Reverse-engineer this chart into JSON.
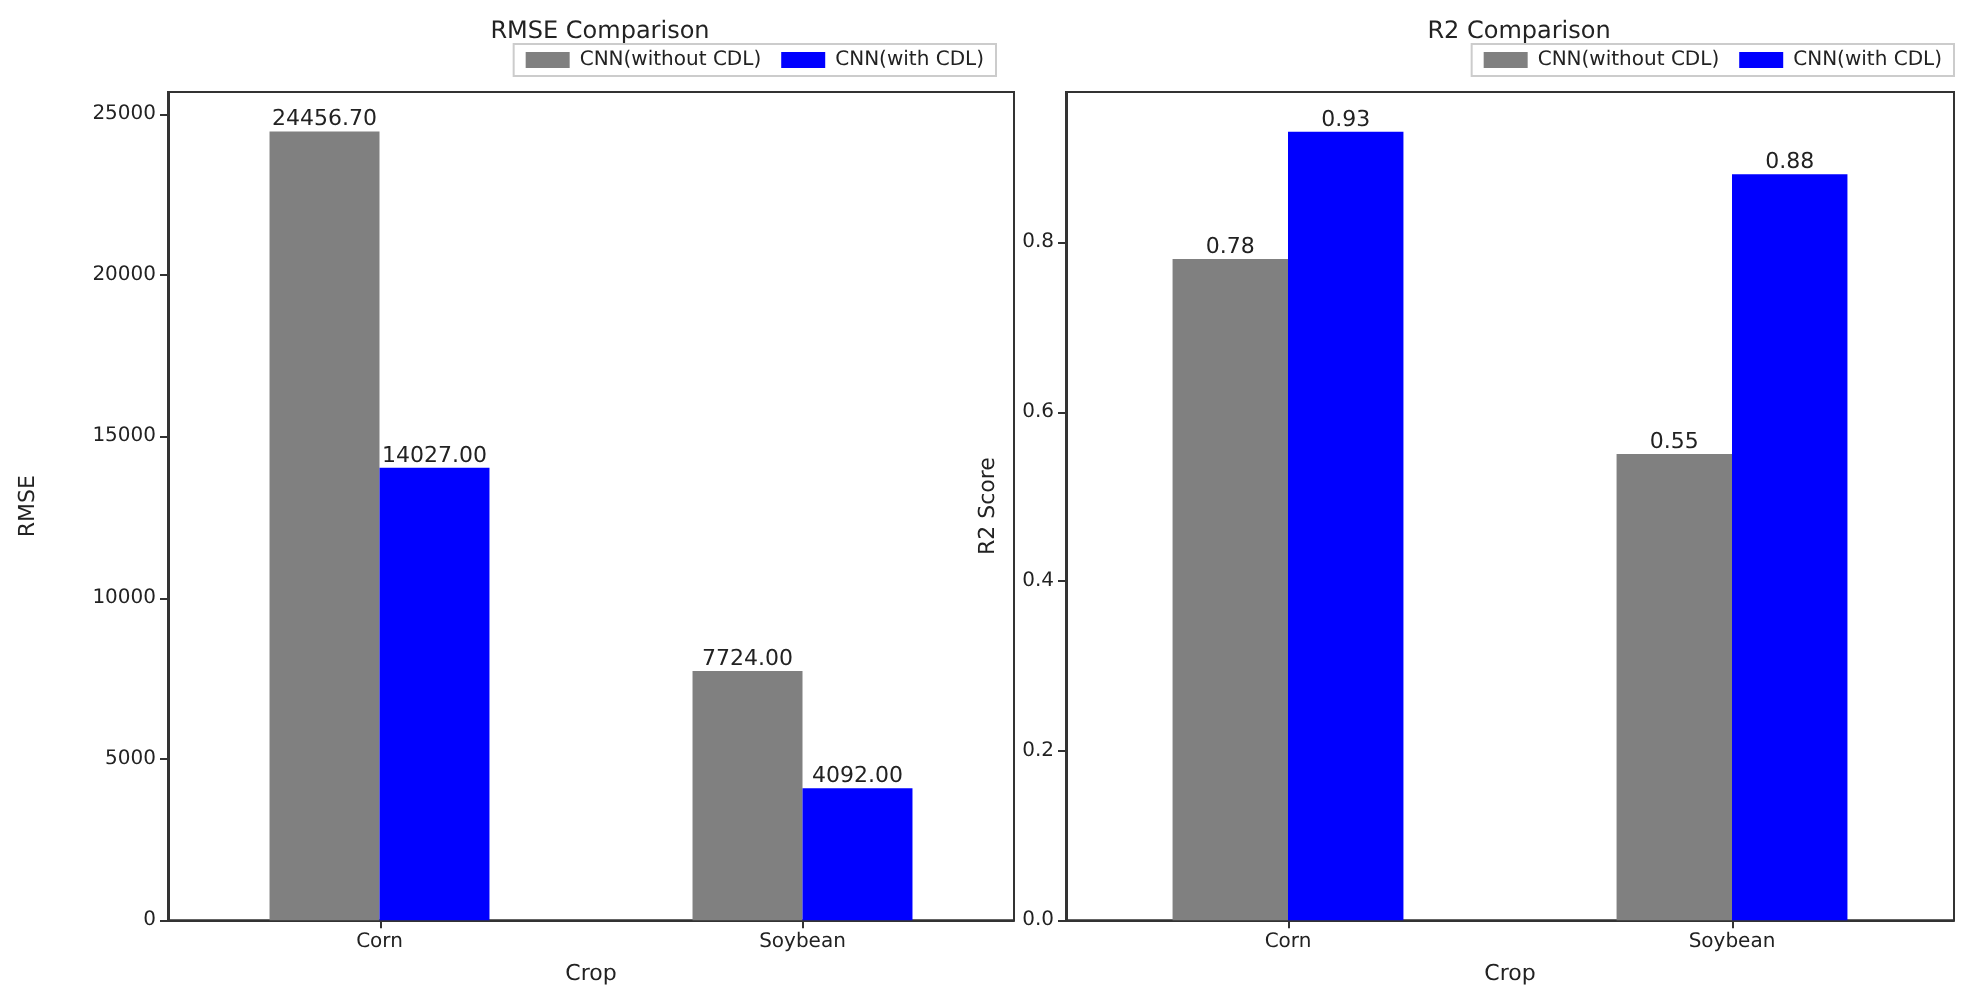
{
  "chart_data": [
    {
      "type": "bar",
      "title": "RMSE Comparison",
      "xlabel": "Crop",
      "ylabel": "RMSE",
      "categories": [
        "Corn",
        "Soybean"
      ],
      "series": [
        {
          "name": "CNN(without CDL)",
          "color": "#808080",
          "values": [
            24456.7,
            7724
          ],
          "value_labels": [
            "24456.70",
            "7724.00"
          ]
        },
        {
          "name": "CNN(with CDL)",
          "color": "#0000ff",
          "values": [
            14027,
            4092
          ],
          "value_labels": [
            "14027.00",
            "4092.00"
          ]
        }
      ],
      "ylim": [
        0,
        25680
      ],
      "yticks": [
        0,
        5000,
        10000,
        15000,
        20000,
        25000
      ],
      "grid": false,
      "legend": "top right"
    },
    {
      "type": "bar",
      "title": "R2 Comparison",
      "xlabel": "Crop",
      "ylabel": "R2 Score",
      "categories": [
        "Corn",
        "Soybean"
      ],
      "series": [
        {
          "name": "CNN(without CDL)",
          "color": "#808080",
          "values": [
            0.78,
            0.55
          ],
          "value_labels": [
            "0.78",
            "0.55"
          ]
        },
        {
          "name": "CNN(with CDL)",
          "color": "#0000ff",
          "values": [
            0.93,
            0.88
          ],
          "value_labels": [
            "0.93",
            "0.88"
          ]
        }
      ],
      "ylim": [
        0,
        0.977
      ],
      "yticks": [
        {
          "value": 0,
          "label": "0.0"
        },
        {
          "value": 0.2,
          "label": "0.2"
        },
        {
          "value": 0.4,
          "label": "0.4"
        },
        {
          "value": 0.6,
          "label": "0.6"
        },
        {
          "value": 0.8,
          "label": "0.8"
        }
      ],
      "grid": false,
      "legend": "top right"
    }
  ]
}
